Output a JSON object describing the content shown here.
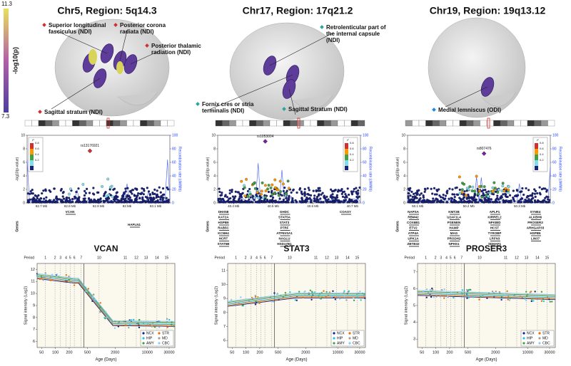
{
  "colorbar": {
    "max_label": "11.3",
    "min_label": "7.3",
    "label": "-log10(p)"
  },
  "legend": [
    {
      "name": "NCX",
      "color": "#1a237e"
    },
    {
      "name": "STR",
      "color": "#ef6c00"
    },
    {
      "name": "HIP",
      "color": "#26c6da"
    },
    {
      "name": "MD",
      "color": "#9e9e9e"
    },
    {
      "name": "AMY",
      "color": "#43a047"
    },
    {
      "name": "CBC",
      "color": "#90caf9"
    }
  ],
  "ld_key": {
    "label": "r²",
    "levels": [
      0.8,
      0.6,
      0.4,
      0.2
    ]
  },
  "panels": [
    {
      "title": "Chr5, Region: 5q14.3",
      "tracts": [
        "Superior longitudinal fasciculus (NDI)",
        "Posterior corona radiata (NDI)",
        "Posterior thalamic radiation (NDI)",
        "Sagittal stratum (NDI)"
      ],
      "locus": {
        "lead_snp": "rs13176921",
        "lead_position": 82.87,
        "lead_logp": 7.7,
        "xlim": [
          82.65,
          83.15
        ],
        "xticks": [
          {
            "value": 82.7,
            "label": "82.7 Mb"
          },
          {
            "value": 82.8,
            "label": "82.8 Mb"
          },
          {
            "value": 82.9,
            "label": "82.9 Mb"
          },
          {
            "value": 83,
            "label": "83 Mb"
          },
          {
            "value": 83.1,
            "label": "83.1 Mb"
          }
        ],
        "ylim": [
          0,
          10
        ],
        "yticks": [
          0,
          2,
          4,
          6,
          8,
          10
        ],
        "y2lim": [
          0,
          100
        ],
        "y2ticks": [
          0,
          20,
          40,
          60,
          80,
          100
        ],
        "ylabel": "-log10(p-value)",
        "y2label": "Recombination rate (cM/Mb)",
        "genes_label": "Genes",
        "genes": [
          "VCAN",
          "HAPLN1"
        ]
      },
      "expression": {
        "title": "VCAN",
        "ylabel": "Signal intensity (Log2)",
        "xlabel": "Age (Days)",
        "period_label": "Period",
        "periods": [
          1,
          2,
          3,
          4,
          5,
          6,
          7,
          10,
          11,
          12,
          13,
          14,
          15
        ],
        "xlim": [
          40,
          40000
        ],
        "xticks": [
          50,
          100,
          200,
          500,
          2000,
          10000,
          30000
        ],
        "ylim": [
          5.5,
          12.5
        ],
        "yticks": [
          6,
          7,
          8,
          9,
          10,
          11,
          12
        ]
      }
    },
    {
      "title": "Chr17, Region: 17q21.2",
      "tracts": [
        "Retrolenticular part of the internal capsule (NDI)",
        "Fornix cres or stria terminalis (NDI)",
        "Sagittal Stratum (NDI)"
      ],
      "locus": {
        "lead_snp": "rs1053004",
        "lead_position": 40.48,
        "lead_logp": 9.1,
        "xlim": [
          40.36,
          40.72
        ],
        "xticks": [
          {
            "value": 40.4,
            "label": "40.4 Mb"
          },
          {
            "value": 40.5,
            "label": "40.5 Mb"
          },
          {
            "value": 40.6,
            "label": "40.6 Mb"
          },
          {
            "value": 40.7,
            "label": "40.7 Mb"
          }
        ],
        "ylim": [
          0,
          10
        ],
        "yticks": [
          0,
          2,
          4,
          6,
          8,
          10
        ],
        "y2lim": [
          0,
          100
        ],
        "y2ticks": [
          0,
          20,
          40,
          60,
          80,
          100
        ],
        "ylabel": "-log10(p-value)",
        "y2label": "Recombination rate (cM/Mb)",
        "genes_label": "Genes",
        "genes": [
          "DHX58",
          "KAT2A",
          "HSPB9",
          "RAB5C",
          "KCNH4",
          "HCRT",
          "STAT5B",
          "GHDC",
          "STAT5A",
          "STAT3",
          "PTRF",
          "ATP6V0A1",
          "NAGLU",
          "HSD17B1",
          "COASY"
        ]
      },
      "expression": {
        "title": "STAT3",
        "ylabel": "Signal intensity (Log2)",
        "xlabel": "Age (Days)",
        "period_label": "Period",
        "periods": [
          1,
          2,
          3,
          4,
          5,
          6,
          7,
          10,
          11,
          12,
          13,
          14,
          15
        ],
        "xlim": [
          40,
          40000
        ],
        "xticks": [
          50,
          100,
          200,
          500,
          2000,
          10000,
          30000
        ],
        "ylim": [
          5.5,
          11.5
        ],
        "yticks": [
          6,
          7,
          8,
          9,
          10,
          11
        ]
      }
    },
    {
      "title": "Chr19, Region: 19q13.12",
      "tracts": [
        "Medial lemniscus (ODI)"
      ],
      "locus": {
        "lead_snp": "rs807476",
        "lead_position": 50.23,
        "lead_logp": 7.3,
        "xlim": [
          50.08,
          50.36
        ],
        "xticks": [
          {
            "value": 50.1,
            "label": "50.1 Mb"
          },
          {
            "value": 50.2,
            "label": "50.2 Mb"
          },
          {
            "value": 50.3,
            "label": "50.3 Mb"
          }
        ],
        "ylim": [
          0,
          10
        ],
        "yticks": [
          0,
          2,
          4,
          6,
          8,
          10
        ],
        "y2lim": [
          0,
          100
        ],
        "y2ticks": [
          0,
          20,
          40,
          60,
          80,
          100
        ],
        "ylabel": "-log10(p-value)",
        "y2label": "Recombination rate (cM/Mb)",
        "genes_label": "Genes",
        "genes": [
          "NAPSA",
          "RBM42",
          "COX6B1",
          "ETV2",
          "ATP4A",
          "UPK1A",
          "ZBTB32",
          "KMT2B",
          "U2AF1L4",
          "PSENEN",
          "HAMP",
          "MAG",
          "PRODH2",
          "NPHS1",
          "APLP1",
          "KIRREL2",
          "NFKBID",
          "HCST",
          "TYROBP",
          "LRFN3",
          "SDHAF1",
          "SYNE4",
          "ALKBH6",
          "PROSER3",
          "ARHGAP33",
          "HSPB6",
          "LIN37"
        ]
      },
      "expression": {
        "title": "PROSER3",
        "ylabel": "Signal intensity (Log2)",
        "xlabel": "Age (Days)",
        "period_label": "Period",
        "periods": [
          1,
          2,
          3,
          4,
          5,
          6,
          7,
          10,
          11,
          12,
          13,
          14,
          15
        ],
        "xlim": [
          40,
          40000
        ],
        "xticks": [
          50,
          100,
          200,
          500,
          2000,
          10000,
          30000
        ],
        "ylim": [
          2.5,
          7.5
        ],
        "yticks": [
          3,
          4,
          5,
          6,
          7
        ]
      }
    }
  ]
}
